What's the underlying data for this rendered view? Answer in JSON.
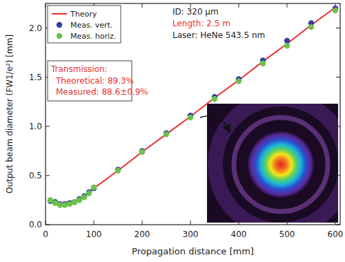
{
  "chart_data": {
    "type": "scatter",
    "xlabel": "Propagation distance [mm]",
    "ylabel": "Output beam diameter (FW1/e²) [mm]",
    "xlim": [
      0,
      610
    ],
    "ylim": [
      0,
      2.25
    ],
    "xticks": [
      0,
      100,
      200,
      300,
      400,
      500,
      600
    ],
    "yticks": [
      {
        "value": 0,
        "label": "0.0"
      },
      0.5,
      {
        "value": 1,
        "label": "1.0"
      },
      1.5,
      {
        "value": 2,
        "label": "2.0"
      }
    ],
    "legend": "top-left",
    "series": [
      {
        "name": "Theory",
        "type": "line",
        "color": "#e8312f",
        "line_style": "solid",
        "x": [
          5,
          10,
          20,
          30,
          40,
          50,
          60,
          70,
          80,
          90,
          100,
          150,
          200,
          250,
          300,
          350,
          400,
          450,
          500,
          550,
          600
        ],
        "values": [
          0.25,
          0.23,
          0.21,
          0.2,
          0.2,
          0.21,
          0.23,
          0.26,
          0.29,
          0.33,
          0.37,
          0.55,
          0.74,
          0.92,
          1.1,
          1.29,
          1.47,
          1.66,
          1.84,
          2.03,
          2.21
        ]
      },
      {
        "name": "Meas. vert.",
        "type": "scatter",
        "color": "#2f3fa3",
        "marker": "circle",
        "x": [
          10,
          20,
          30,
          40,
          50,
          60,
          70,
          80,
          90,
          100,
          150,
          200,
          250,
          300,
          350,
          400,
          450,
          500,
          550,
          600
        ],
        "values": [
          0.24,
          0.23,
          0.21,
          0.21,
          0.22,
          0.23,
          0.26,
          0.29,
          0.33,
          0.37,
          0.56,
          0.75,
          0.93,
          1.11,
          1.3,
          1.48,
          1.67,
          1.87,
          2.05,
          2.2
        ]
      },
      {
        "name": "Meas. horiz.",
        "type": "scatter",
        "color": "#6cc24a",
        "marker": "circle",
        "x": [
          10,
          20,
          30,
          40,
          50,
          60,
          70,
          80,
          90,
          100,
          150,
          200,
          250,
          300,
          350,
          400,
          450,
          500,
          550,
          600
        ],
        "values": [
          0.25,
          0.22,
          0.2,
          0.2,
          0.21,
          0.23,
          0.25,
          0.28,
          0.32,
          0.38,
          0.55,
          0.74,
          0.92,
          1.09,
          1.28,
          1.46,
          1.64,
          1.82,
          2.01,
          2.18
        ]
      }
    ],
    "annotations": [
      {
        "text": "ID: 320 µm",
        "color": "#222222"
      },
      {
        "text": "Length: 2.5 m",
        "color": "#e8312f"
      },
      {
        "text": "Laser: HeNe 543.5 nm",
        "color": "#222222"
      }
    ],
    "transmission": {
      "title": "Transmission:",
      "lines": [
        "Theoretical: 89.3%",
        "Measured: 88.6±0.9%"
      ],
      "color": "#e8312f"
    }
  }
}
